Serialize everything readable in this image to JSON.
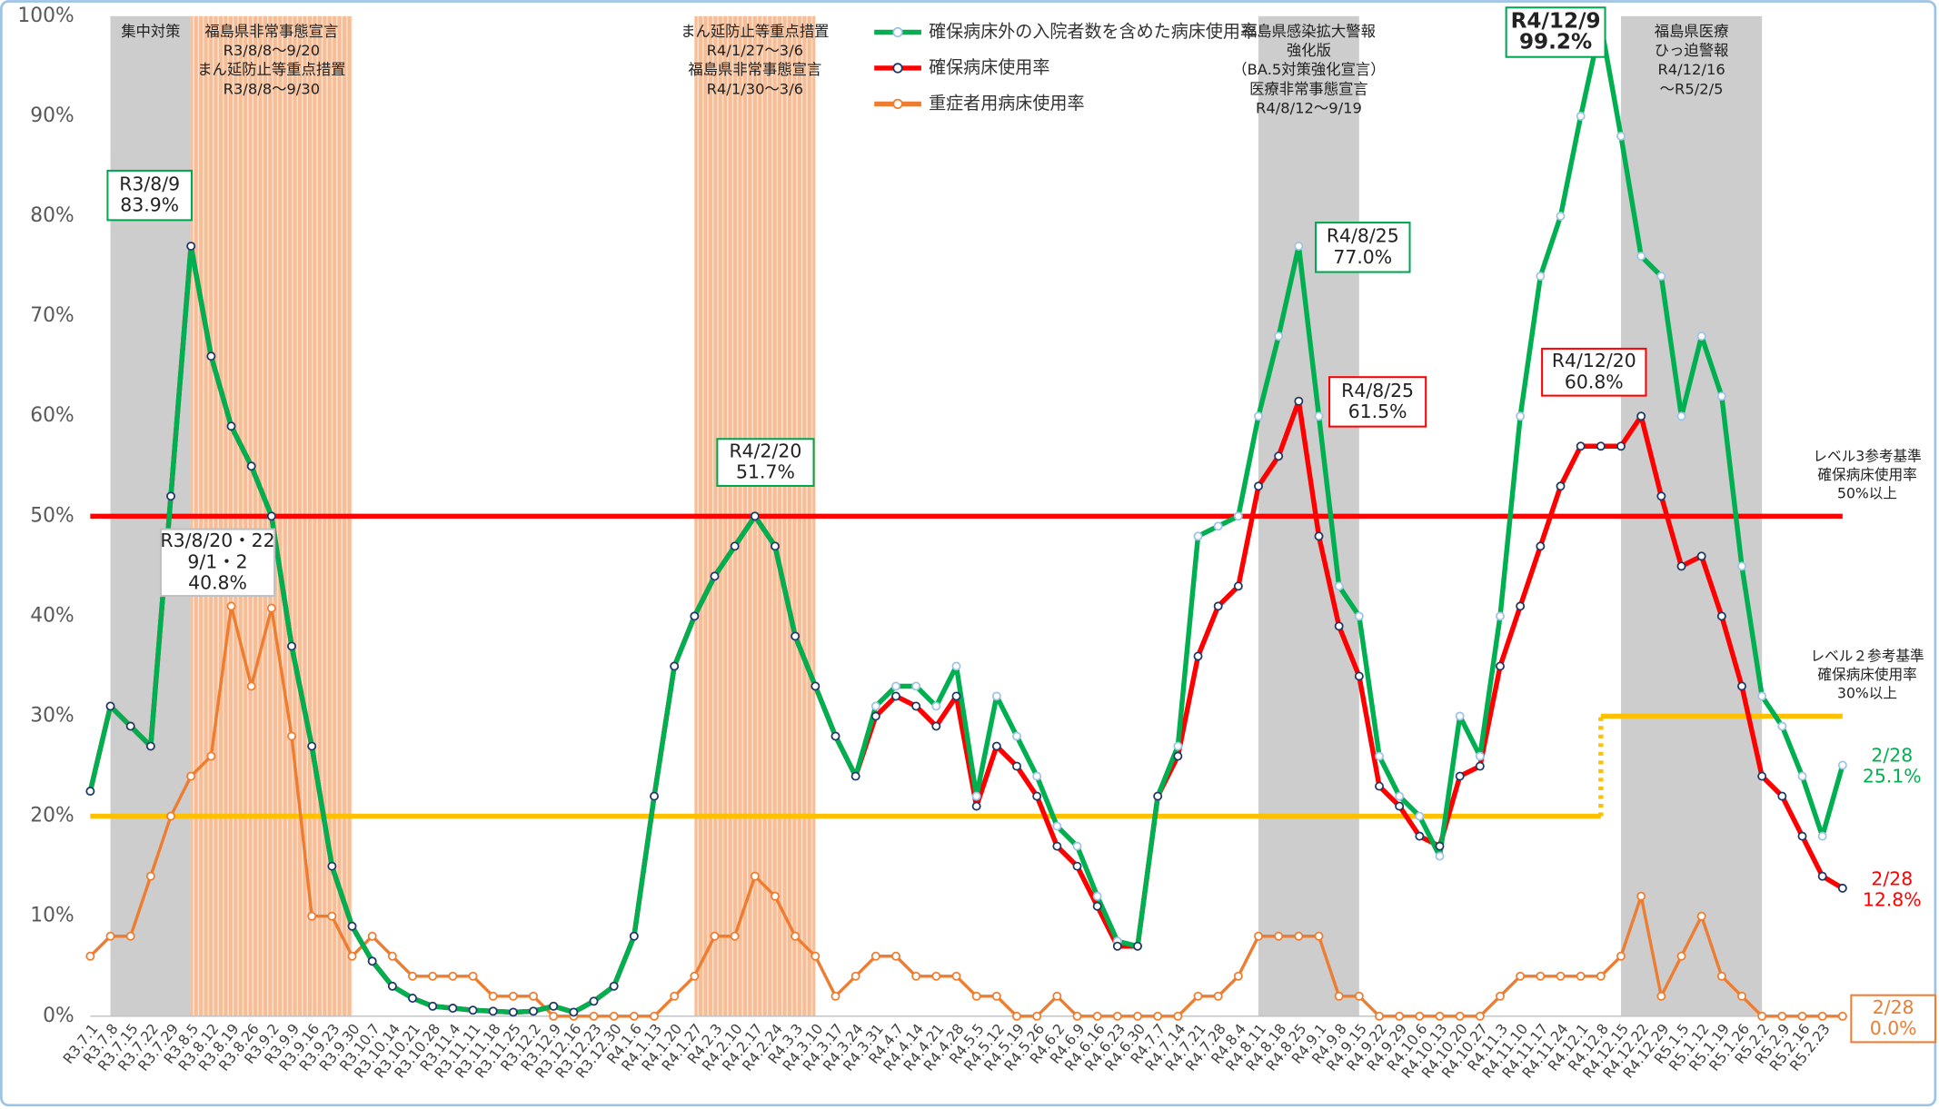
{
  "chart_data": {
    "type": "line",
    "categories": [
      "R3.7.1",
      "R3.7.8",
      "R3.7.15",
      "R3.7.22",
      "R3.7.29",
      "R3.8.5",
      "R3.8.12",
      "R3.8.19",
      "R3.8.26",
      "R3.9.2",
      "R3.9.9",
      "R3.9.16",
      "R3.9.23",
      "R3.9.30",
      "R3.10.7",
      "R3.10.14",
      "R3.10.21",
      "R3.10.28",
      "R3.11.4",
      "R3.11.11",
      "R3.11.18",
      "R3.11.25",
      "R3.12.2",
      "R3.12.9",
      "R3.12.16",
      "R3.12.23",
      "R3.12.30",
      "R4.1.6",
      "R4.1.13",
      "R4.1.20",
      "R4.1.27",
      "R4.2.3",
      "R4.2.10",
      "R4.2.17",
      "R4.2.24",
      "R4.3.3",
      "R4.3.10",
      "R4.3.17",
      "R4.3.24",
      "R4.3.31",
      "R4.4.7",
      "R4.4.14",
      "R4.4.21",
      "R4.4.28",
      "R4.5.5",
      "R4.5.12",
      "R4.5.19",
      "R4.5.26",
      "R4.6.2",
      "R4.6.9",
      "R4.6.16",
      "R4.6.23",
      "R4.6.30",
      "R4.7.7",
      "R4.7.14",
      "R4.7.21",
      "R4.7.28",
      "R4.8.4",
      "R4.8.11",
      "R4.8.18",
      "R4.8.25",
      "R4.9.1",
      "R4.9.8",
      "R4.9.15",
      "R4.9.22",
      "R4.9.29",
      "R4.10.6",
      "R4.10.13",
      "R4.10.20",
      "R4.10.27",
      "R4.11.3",
      "R4.11.10",
      "R4.11.17",
      "R4.11.24",
      "R4.12.1",
      "R4.12.8",
      "R4.12.15",
      "R4.12.22",
      "R4.12.29",
      "R5.1.5",
      "R5.1.12",
      "R5.1.19",
      "R5.1.26",
      "R5.2.2",
      "R5.2.9",
      "R5.2.16",
      "R5.2.23",
      null
    ],
    "series": [
      {
        "name": "確保病床外の入院者数を含めた病床使用率",
        "color": "#00b050",
        "marker_color": "#9dc3e6",
        "values": [
          22.5,
          31,
          29,
          27,
          52,
          77,
          66,
          59,
          55,
          50,
          37,
          27,
          15,
          9,
          5.5,
          3,
          1.8,
          1,
          0.8,
          0.6,
          0.5,
          0.4,
          0.5,
          1,
          0.4,
          1.5,
          3,
          8,
          22,
          35,
          40,
          44,
          47,
          50,
          47,
          38,
          33,
          28,
          24,
          31,
          33,
          33,
          31,
          35,
          22,
          32,
          28,
          24,
          19,
          17,
          12,
          7.5,
          7,
          22,
          27,
          48,
          49,
          50,
          60,
          68,
          77,
          60,
          43,
          40,
          26,
          22,
          20,
          16,
          30,
          26,
          40,
          60,
          74,
          80,
          90,
          99.2,
          88,
          76,
          74,
          60,
          68,
          62,
          45,
          32,
          29,
          24,
          18,
          25.1
        ]
      },
      {
        "name": "確保病床使用率",
        "color": "#ff0000",
        "marker_color": "#1f3864",
        "values": [
          22.5,
          31,
          29,
          27,
          52,
          77,
          66,
          59,
          55,
          50,
          37,
          27,
          15,
          9,
          5.5,
          3,
          1.8,
          1,
          0.8,
          0.6,
          0.5,
          0.4,
          0.5,
          1,
          0.4,
          1.5,
          3,
          8,
          22,
          35,
          40,
          44,
          47,
          50,
          47,
          38,
          33,
          28,
          24,
          30,
          32,
          31,
          29,
          32,
          21,
          27,
          25,
          22,
          17,
          15,
          11,
          7,
          7,
          22,
          26,
          36,
          41,
          43,
          53,
          56,
          61.5,
          48,
          39,
          34,
          23,
          21,
          18,
          17,
          24,
          25,
          35,
          41,
          47,
          53,
          57,
          57,
          57,
          60,
          52,
          45,
          46,
          40,
          33,
          24,
          22,
          18,
          14,
          12.8
        ]
      },
      {
        "name": "重症者用病床使用率",
        "color": "#ed7d31",
        "marker_color": "#ed7d31",
        "values": [
          6,
          8,
          8,
          14,
          20,
          24,
          26,
          41,
          33,
          40.8,
          28,
          10,
          10,
          6,
          8,
          6,
          4,
          4,
          4,
          4,
          2,
          2,
          2,
          0,
          0,
          0,
          0,
          0,
          0,
          2,
          4,
          8,
          8,
          14,
          12,
          8,
          6,
          2,
          4,
          6,
          6,
          4,
          4,
          4,
          2,
          2,
          0,
          0,
          2,
          0,
          0,
          0,
          0,
          0,
          0,
          2,
          2,
          4,
          8,
          8,
          8,
          8,
          2,
          2,
          0,
          0,
          0,
          0,
          0,
          0,
          2,
          4,
          4,
          4,
          4,
          4,
          6,
          12,
          2,
          6,
          10,
          4,
          2,
          0,
          0,
          0,
          0,
          0
        ]
      }
    ],
    "ylim": [
      0,
      100
    ],
    "yticks": [
      {
        "value": 0,
        "label": "0%"
      },
      {
        "value": 10,
        "label": "10%"
      },
      {
        "value": 20,
        "label": "20%"
      },
      {
        "value": 30,
        "label": "30%"
      },
      {
        "value": 40,
        "label": "40%"
      },
      {
        "value": 50,
        "label": "50%"
      },
      {
        "value": 60,
        "label": "60%"
      },
      {
        "value": 70,
        "label": "70%"
      },
      {
        "value": 80,
        "label": "80%"
      },
      {
        "value": 90,
        "label": "90%"
      },
      {
        "value": 100,
        "label": "100%"
      }
    ],
    "legend": "top",
    "reference_lines": [
      {
        "values": [
          50
        ],
        "color": "#ff0000",
        "label": [
          "レベル3参考基準",
          "確保病床使用率",
          "50%以上"
        ]
      },
      {
        "values": [
          20,
          30
        ],
        "change_at": "R4.12.8",
        "color": "#ffc000",
        "label": [
          "レベル２参考基準",
          "確保病床使用率",
          "30%以上"
        ]
      }
    ],
    "periods": [
      {
        "start": "R3.7.8",
        "end": "R3.8.5",
        "color": "gray",
        "label": [
          "集中対策"
        ]
      },
      {
        "start": "R3.8.5",
        "end": "R3.9.30",
        "color": "orange",
        "label": [
          "福島県非常事態宣言",
          "R3/8/8～9/20",
          "まん延防止等重点措置",
          "R3/8/8～9/30"
        ]
      },
      {
        "start": "R4.1.27",
        "end": "R4.3.10",
        "color": "orange",
        "label": [
          "まん延防止等重点措置",
          "R4/1/27～3/6",
          "福島県非常事態宣言",
          "R4/1/30～3/6"
        ]
      },
      {
        "start": "R4.8.11",
        "end": "R4.9.15",
        "color": "gray",
        "label": [
          "福島県感染拡大警報",
          "強化版",
          "（BA.5対策強化宣言）",
          "医療非常事態宣言",
          "R4/8/12～9/19"
        ]
      },
      {
        "start": "R4.12.15",
        "end": "R5.2.2",
        "color": "gray",
        "label": [
          "福島県医療",
          "ひっ迫警報",
          "R4/12/16",
          "～R5/2/5"
        ]
      }
    ],
    "annotations": [
      {
        "lines": [
          "R3/8/9",
          "83.9%"
        ],
        "border_color": "#00a651"
      },
      {
        "lines": [
          "R3/8/20・22",
          "9/1・2",
          "40.8%"
        ],
        "border_color": "#bfbfbf"
      },
      {
        "lines": [
          "R4/2/20",
          "51.7%"
        ],
        "border_color": "#00a651"
      },
      {
        "lines": [
          "R4/8/25",
          "77.0%"
        ],
        "border_color": "#00a651"
      },
      {
        "lines": [
          "R4/8/25",
          "61.5%"
        ],
        "border_color": "#ff0000"
      },
      {
        "lines": [
          "R4/12/9",
          "99.2%"
        ],
        "border_color": "#00a651",
        "bold": true
      },
      {
        "lines": [
          "R4/12/20",
          "60.8%"
        ],
        "border_color": "#ff0000"
      },
      {
        "lines": [
          "2/28",
          "25.1%"
        ],
        "text_color": "#00b050"
      },
      {
        "lines": [
          "2/28",
          "12.8%"
        ],
        "text_color": "#ff0000"
      },
      {
        "lines": [
          "2/28",
          "0.0%"
        ],
        "text_color": "#ed7d31",
        "border_color": "#ed7d31"
      }
    ]
  }
}
